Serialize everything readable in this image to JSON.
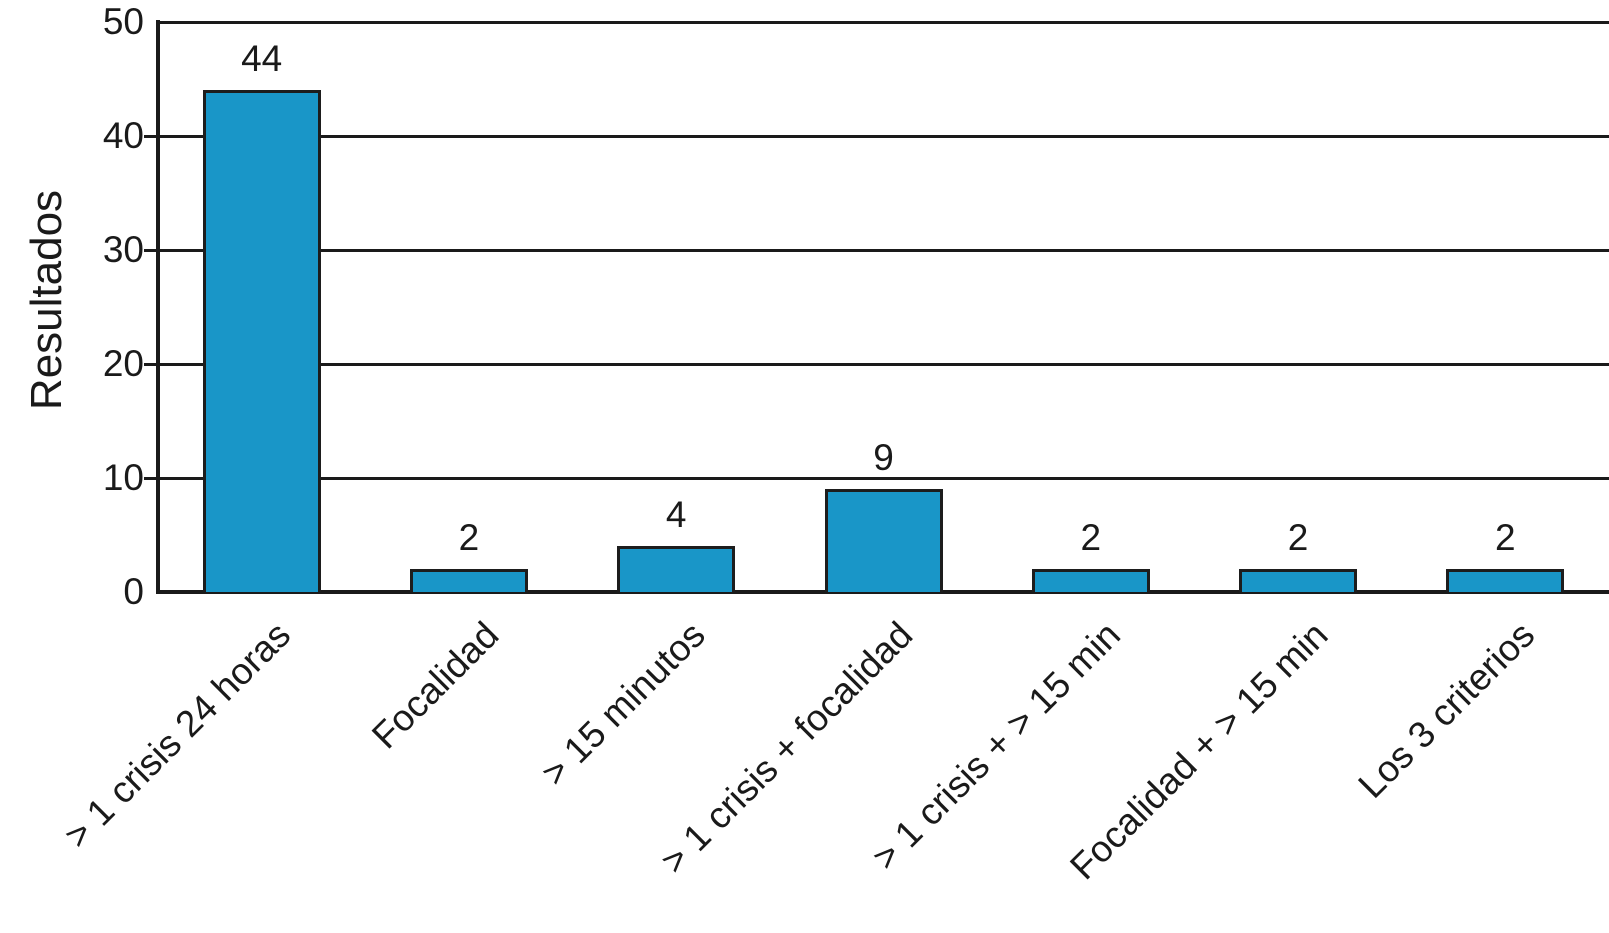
{
  "chart_data": {
    "type": "bar",
    "title": "",
    "xlabel": "",
    "ylabel": "Resultados",
    "categories": [
      "> 1 crisis 24 horas",
      "Focalidad",
      "> 15 minutos",
      "> 1 crisis + focalidad",
      "> 1 crisis + > 15 min",
      "Focalidad + > 15 min",
      "Los 3 criterios"
    ],
    "values": [
      44,
      2,
      4,
      9,
      2,
      2,
      2
    ],
    "show_value_labels": true,
    "value_labels": [
      "44",
      "2",
      "4",
      "9",
      "2",
      "2",
      "2"
    ],
    "ylim": [
      0,
      50
    ],
    "yticks": [
      "0",
      "10",
      "20",
      "30",
      "40",
      "50"
    ],
    "grid": "horizontal",
    "legend": "none",
    "xtick_rotation_deg": 45,
    "colors": {
      "bar_fill": "#1996C8",
      "bar_edge": "#1d1d1d",
      "gridline": "#1a1a1a",
      "text": "#1a1a1a",
      "background": "#ffffff"
    }
  }
}
